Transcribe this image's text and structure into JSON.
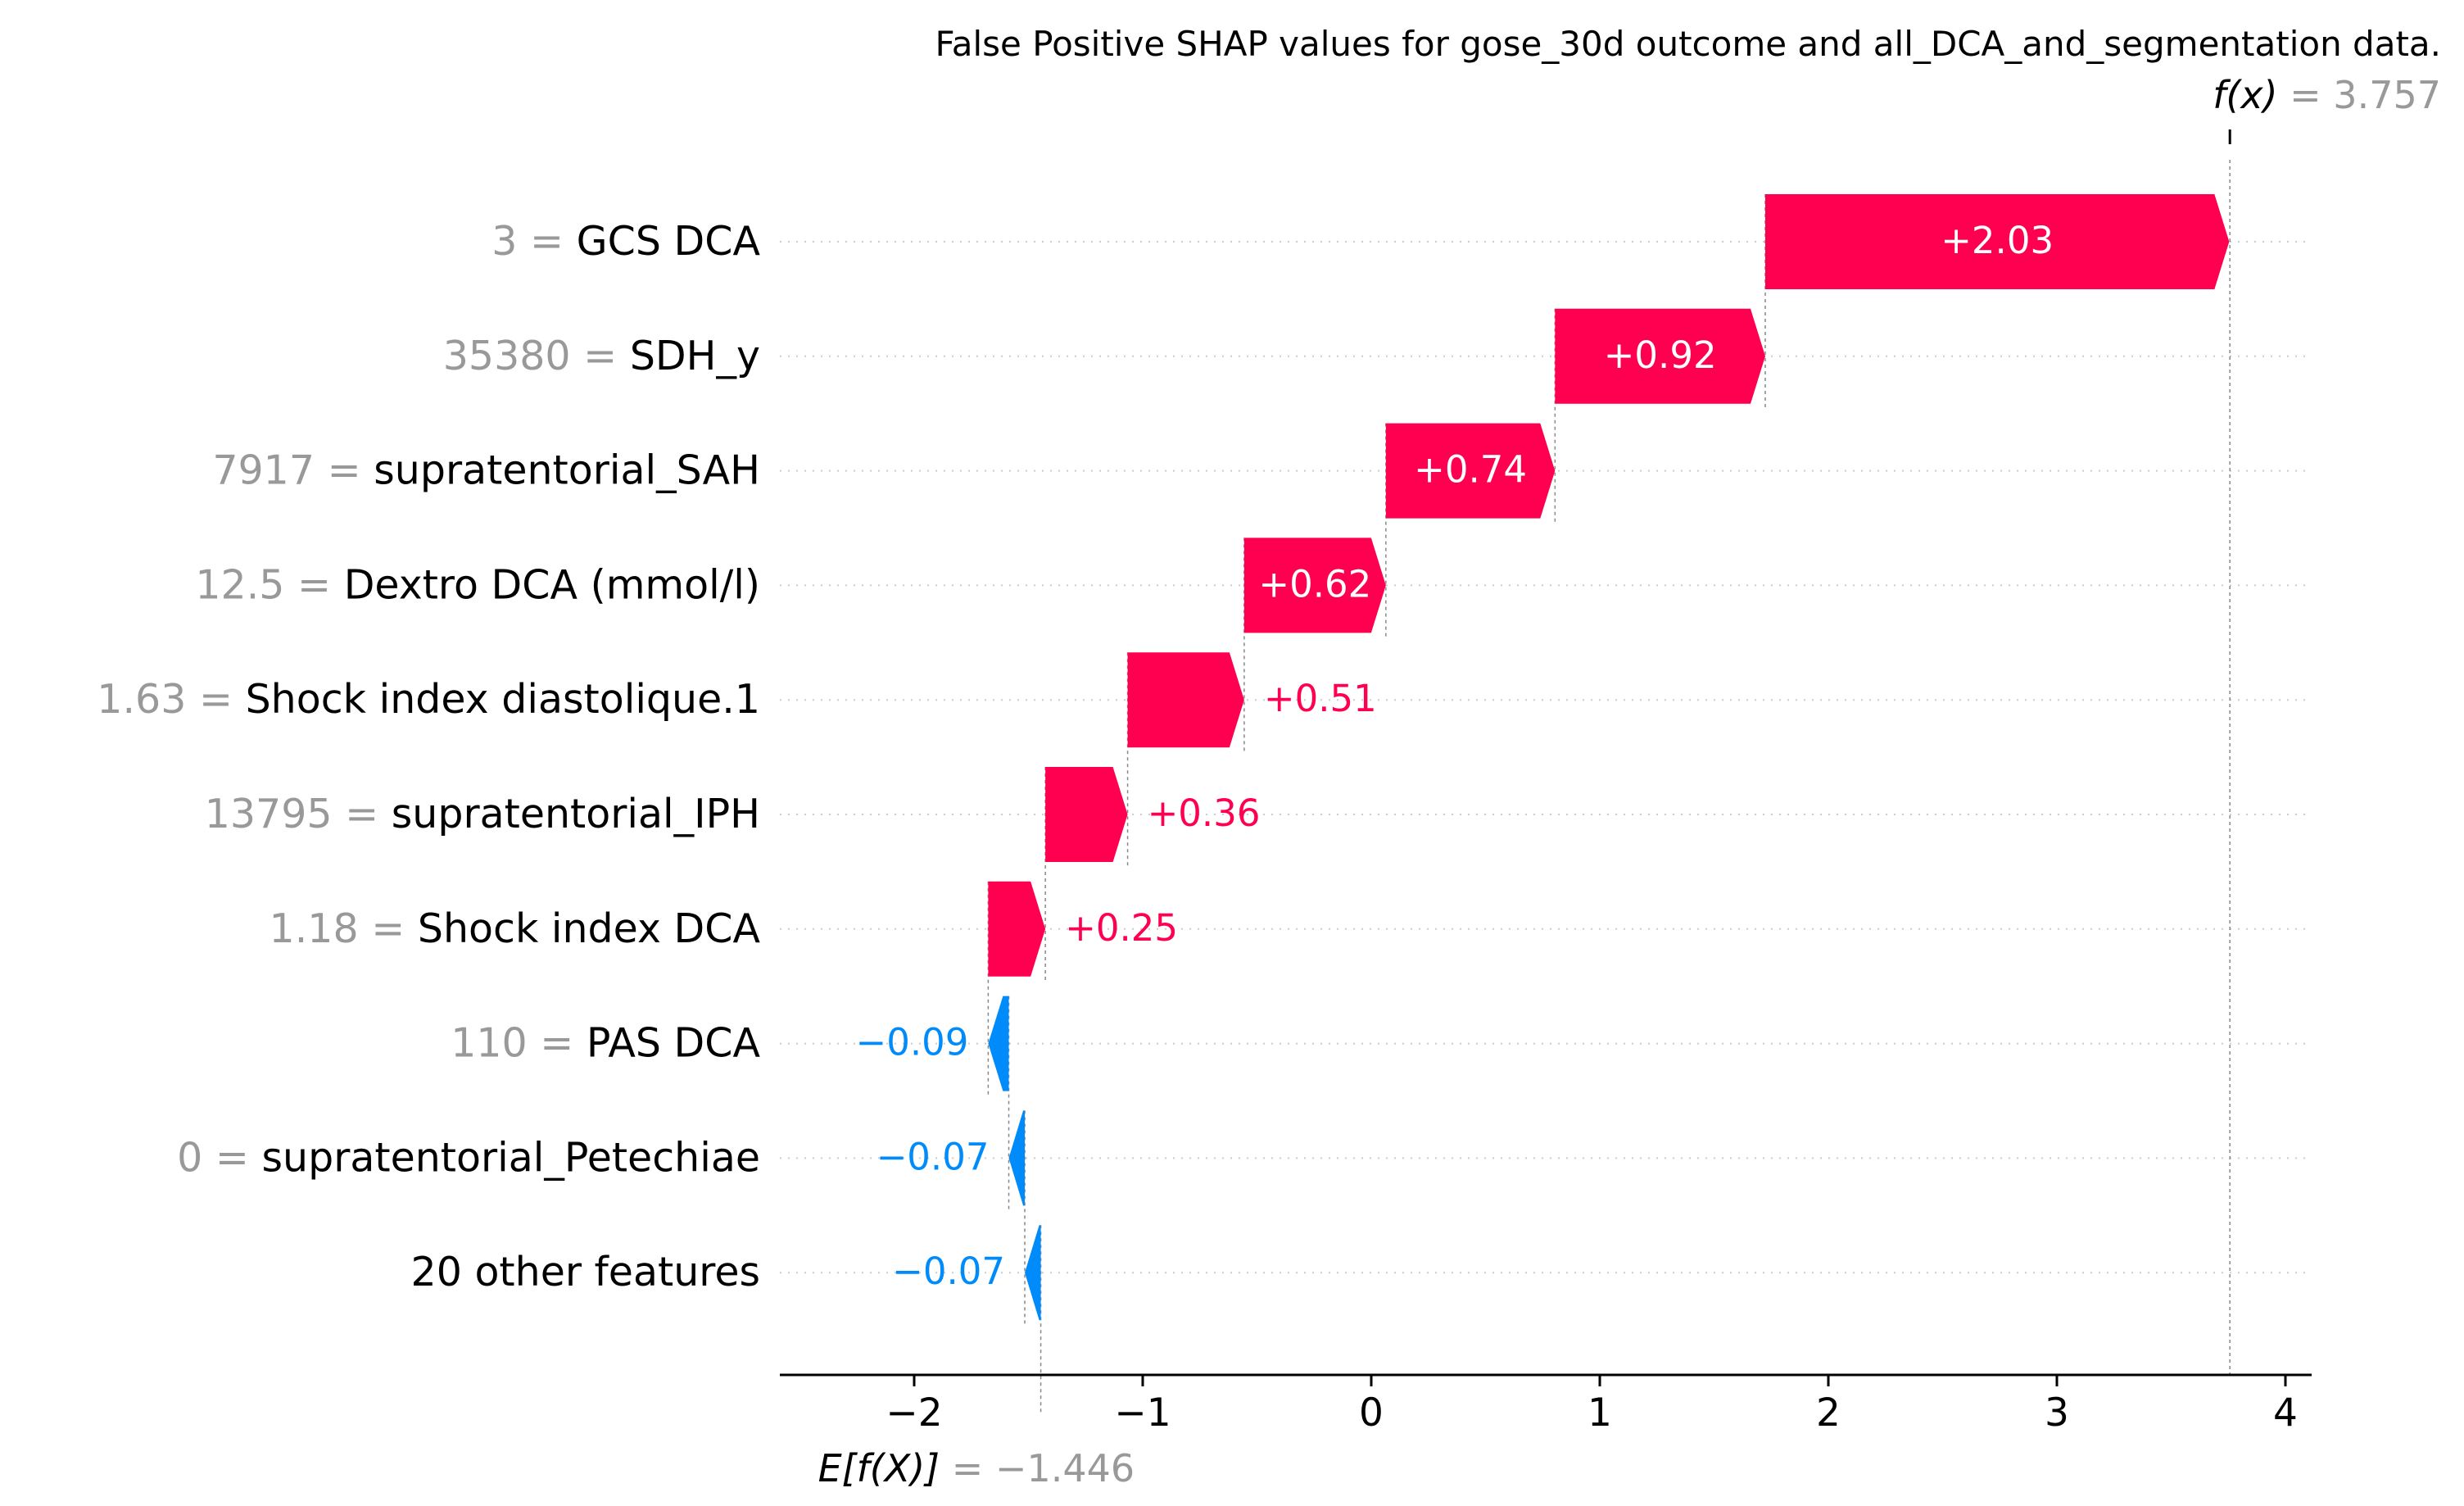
{
  "chart_data": {
    "type": "waterfall",
    "title": "False Positive SHAP values for gose_30d outcome and all_DCA_and_segmentation data.",
    "fx": {
      "label": "f(x)",
      "value_label": "3.757",
      "value": 3.757
    },
    "efx": {
      "label": "E[f(X)]",
      "value_label": "−1.446",
      "value": -1.446
    },
    "xlim": [
      -2.6,
      4.1
    ],
    "xticks": [
      {
        "value": -2,
        "label": "−2"
      },
      {
        "value": -1,
        "label": "−1"
      },
      {
        "value": 0,
        "label": "0"
      },
      {
        "value": 1,
        "label": "1"
      },
      {
        "value": 2,
        "label": "2"
      },
      {
        "value": 3,
        "label": "3"
      },
      {
        "value": 4,
        "label": "4"
      }
    ],
    "features": [
      {
        "value": "3",
        "name": "GCS DCA",
        "shap": 2.03,
        "label": "+2.03"
      },
      {
        "value": "35380",
        "name": "SDH_y",
        "shap": 0.92,
        "label": "+0.92"
      },
      {
        "value": "7917",
        "name": "supratentorial_SAH",
        "shap": 0.74,
        "label": "+0.74"
      },
      {
        "value": "12.5",
        "name": "Dextro DCA (mmol/l)",
        "shap": 0.62,
        "label": "+0.62"
      },
      {
        "value": "1.63",
        "name": "Shock index diastolique.1",
        "shap": 0.51,
        "label": "+0.51"
      },
      {
        "value": "13795",
        "name": "supratentorial_IPH",
        "shap": 0.36,
        "label": "+0.36"
      },
      {
        "value": "1.18",
        "name": "Shock index DCA",
        "shap": 0.25,
        "label": "+0.25"
      },
      {
        "value": "110",
        "name": "PAS DCA",
        "shap": -0.09,
        "label": "−0.09"
      },
      {
        "value": "0",
        "name": "supratentorial_Petechiae",
        "shap": -0.07,
        "label": "−0.07"
      },
      {
        "value": "",
        "name": "20 other features",
        "shap": -0.07,
        "label": "−0.07"
      }
    ],
    "colors": {
      "positive": "#ff0051",
      "negative": "#008bfb",
      "muted": "#999999",
      "grid": "#cccccc"
    }
  }
}
